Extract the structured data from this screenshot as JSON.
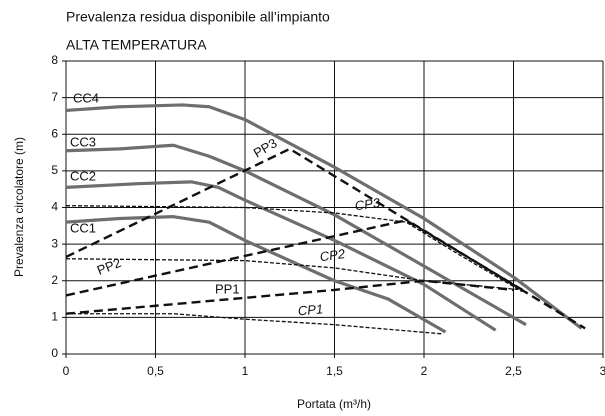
{
  "chart_data": {
    "type": "line",
    "title": "Prevalenza residua disponibile all’impianto",
    "subtitle": "ALTA TEMPERATURA",
    "x_label": "Portata (m³/h)",
    "y_label": "Prevalenza circolatore (m)",
    "xlim": [
      0,
      3
    ],
    "ylim": [
      0,
      8
    ],
    "xticks": [
      0,
      {
        "value": 0.5,
        "label": "0,5"
      },
      1,
      {
        "value": 1.5,
        "label": "1,5"
      },
      2,
      {
        "value": 2.5,
        "label": "2,5"
      },
      3
    ],
    "yticks": [
      0,
      1,
      2,
      3,
      4,
      5,
      6,
      7,
      8
    ],
    "grid": true,
    "series": [
      {
        "name": "CC4",
        "color": "#6e6e6e",
        "style": "solid",
        "x": [
          0,
          0.3,
          0.65,
          0.8,
          1.0,
          1.5,
          2.0,
          2.5,
          2.88
        ],
        "values": [
          6.65,
          6.75,
          6.8,
          6.75,
          6.4,
          5.1,
          3.7,
          2.1,
          0.7
        ]
      },
      {
        "name": "CC3",
        "color": "#6e6e6e",
        "style": "solid",
        "x": [
          0,
          0.3,
          0.6,
          0.8,
          1.0,
          1.5,
          2.0,
          2.57
        ],
        "values": [
          5.55,
          5.6,
          5.7,
          5.4,
          5.0,
          3.8,
          2.4,
          0.8
        ]
      },
      {
        "name": "CC2",
        "color": "#6e6e6e",
        "style": "solid",
        "x": [
          0,
          0.4,
          0.7,
          0.85,
          1.0,
          1.5,
          2.0,
          2.4
        ],
        "values": [
          4.55,
          4.65,
          4.7,
          4.55,
          4.2,
          3.1,
          1.9,
          0.65
        ]
      },
      {
        "name": "CC1",
        "color": "#6e6e6e",
        "style": "solid",
        "x": [
          0,
          0.3,
          0.6,
          0.8,
          1.0,
          1.5,
          1.8,
          2.12
        ],
        "values": [
          3.6,
          3.7,
          3.75,
          3.6,
          3.1,
          2.0,
          1.5,
          0.6
        ]
      },
      {
        "name": "PP3",
        "color": "#111111",
        "style": "dashed",
        "x": [
          0,
          1.25,
          2.9
        ],
        "values": [
          2.65,
          5.6,
          0.7
        ]
      },
      {
        "name": "PP2",
        "color": "#111111",
        "style": "dashed",
        "x": [
          0,
          1.9,
          2.55
        ],
        "values": [
          1.6,
          3.65,
          1.75
        ]
      },
      {
        "name": "PP1",
        "color": "#111111",
        "style": "dashed",
        "x": [
          0,
          1.5,
          2.0,
          2.5
        ],
        "values": [
          1.1,
          1.75,
          2.0,
          1.75
        ]
      },
      {
        "name": "CP3",
        "color": "#111111",
        "style": "dotted",
        "x": [
          0,
          1.0,
          1.5,
          1.9,
          2.2,
          2.55
        ],
        "values": [
          4.05,
          4.0,
          3.85,
          3.6,
          2.7,
          1.7
        ]
      },
      {
        "name": "CP2",
        "color": "#111111",
        "style": "dotted",
        "x": [
          0,
          1.0,
          1.5,
          2.0,
          2.55
        ],
        "values": [
          2.6,
          2.55,
          2.35,
          2.0,
          1.75
        ]
      },
      {
        "name": "CP1",
        "color": "#111111",
        "style": "dotted",
        "x": [
          0,
          0.6,
          1.0,
          1.5,
          2.1
        ],
        "values": [
          1.1,
          1.1,
          0.95,
          0.8,
          0.55
        ]
      }
    ]
  }
}
